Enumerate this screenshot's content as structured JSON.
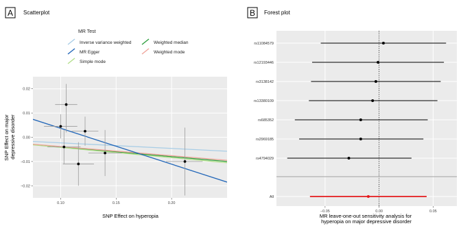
{
  "panels": {
    "a": {
      "letter": "A",
      "title": "Scatterplot"
    },
    "b": {
      "letter": "B",
      "title": "Forest plot"
    }
  },
  "chart_data": [
    {
      "type": "scatter",
      "title": "Scatterplot",
      "xlabel": "SNP Effect on hyperopia",
      "ylabel": [
        "SNP Effect on major",
        "depressive disorder"
      ],
      "xlim": [
        0.075,
        0.25
      ],
      "ylim": [
        -0.025,
        0.025
      ],
      "xticks": [
        0.1,
        0.15,
        0.2
      ],
      "xtick_labels": [
        "0.10",
        "0.15",
        "0.20"
      ],
      "yticks": [
        -0.02,
        -0.01,
        0.0,
        0.01,
        0.02
      ],
      "ytick_labels": [
        "−0.02",
        "−0.01",
        "0.00",
        "0.01",
        "0.02"
      ],
      "grid": true,
      "legend": {
        "title": "MR Test",
        "placement": "top",
        "entries": [
          {
            "label": "Inverse variance weighted",
            "color": "#a8cde6"
          },
          {
            "label": "Weighted median",
            "color": "#2e9e3e"
          },
          {
            "label": "MR Egger",
            "color": "#2166b8"
          },
          {
            "label": "Weighted mode",
            "color": "#f0a39a"
          },
          {
            "label": "Simple mode",
            "color": "#b2df8a"
          }
        ]
      },
      "points": [
        {
          "x": 0.105,
          "y": 0.0135,
          "x_lo": 0.095,
          "x_hi": 0.115,
          "y_lo": 0.002,
          "y_hi": 0.022
        },
        {
          "x": 0.1,
          "y": 0.0045,
          "x_lo": 0.085,
          "x_hi": 0.115,
          "y_lo": -0.0005,
          "y_hi": 0.0095
        },
        {
          "x": 0.122,
          "y": 0.0025,
          "x_lo": 0.11,
          "x_hi": 0.134,
          "y_lo": -0.0035,
          "y_hi": 0.0085
        },
        {
          "x": 0.103,
          "y": -0.004,
          "x_lo": 0.088,
          "x_hi": 0.118,
          "y_lo": -0.011,
          "y_hi": 0.003
        },
        {
          "x": 0.14,
          "y": -0.0065,
          "x_lo": 0.125,
          "x_hi": 0.155,
          "y_lo": -0.016,
          "y_hi": 0.003
        },
        {
          "x": 0.116,
          "y": -0.011,
          "x_lo": 0.102,
          "x_hi": 0.13,
          "y_lo": -0.02,
          "y_hi": -0.002
        },
        {
          "x": 0.212,
          "y": -0.01,
          "x_lo": 0.195,
          "x_hi": 0.228,
          "y_lo": -0.024,
          "y_hi": 0.004
        }
      ],
      "lines": [
        {
          "name": "Inverse variance weighted",
          "color": "#a8cde6",
          "intercept": 0.0,
          "slope": -0.023
        },
        {
          "name": "Weighted median",
          "color": "#2e9e3e",
          "intercept": 0.0,
          "slope": -0.04
        },
        {
          "name": "Simple mode",
          "color": "#b2df8a",
          "intercept": 0.0,
          "slope": -0.042
        },
        {
          "name": "Weighted mode",
          "color": "#f0a39a",
          "intercept": 0.0,
          "slope": -0.038
        },
        {
          "name": "MR Egger",
          "color": "#2166b8",
          "intercept": 0.0185,
          "slope": -0.148
        }
      ]
    },
    {
      "type": "forest",
      "title": "Forest plot",
      "xlabel": [
        "MR leave-one-out sensitivity analysis for",
        "hyperopia on major depressive disorder"
      ],
      "xlim": [
        -0.095,
        0.072
      ],
      "xticks": [
        -0.05,
        0.0,
        0.05
      ],
      "xtick_labels": [
        "−0.05",
        "0.00",
        "0.05"
      ],
      "rows": [
        {
          "label": "rs11084579",
          "estimate": 0.004,
          "lo": -0.054,
          "hi": 0.062
        },
        {
          "label": "rs12193446",
          "estimate": -0.001,
          "lo": -0.062,
          "hi": 0.06
        },
        {
          "label": "rs3138142",
          "estimate": -0.003,
          "lo": -0.063,
          "hi": 0.057
        },
        {
          "label": "rs13380109",
          "estimate": -0.006,
          "lo": -0.065,
          "hi": 0.054
        },
        {
          "label": "rs685352",
          "estimate": -0.017,
          "lo": -0.078,
          "hi": 0.045
        },
        {
          "label": "rs2969185",
          "estimate": -0.017,
          "lo": -0.074,
          "hi": 0.041
        },
        {
          "label": "rs4794029",
          "estimate": -0.028,
          "lo": -0.085,
          "hi": 0.03
        }
      ],
      "overall": {
        "label": "All",
        "estimate": -0.01,
        "lo": -0.064,
        "hi": 0.044,
        "color": "#e41a1c"
      }
    }
  ]
}
